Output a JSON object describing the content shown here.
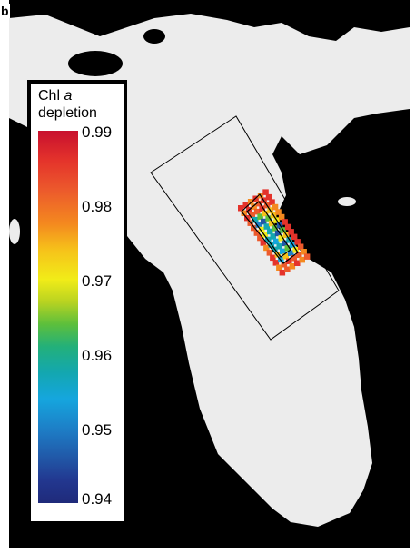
{
  "panel": {
    "letter": "b"
  },
  "legend": {
    "title_prefix": "Chl ",
    "title_italic": "a",
    "title_suffix": "depletion",
    "ticks": [
      "0.99",
      "0.98",
      "0.97",
      "0.96",
      "0.95",
      "0.94"
    ],
    "range": [
      0.94,
      0.99
    ]
  },
  "colors": {
    "land": "#ececec",
    "sea": "#000000",
    "box_line": "#000000"
  }
}
